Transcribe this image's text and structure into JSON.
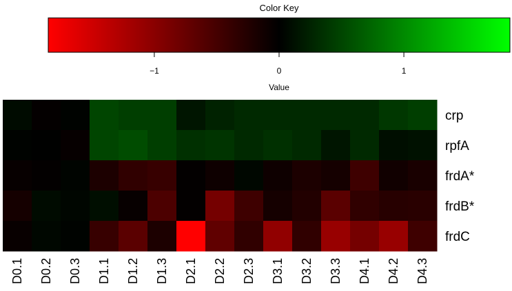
{
  "chart_data": {
    "type": "heatmap",
    "color_key": {
      "title": "Color Key",
      "xlabel": "Value",
      "range": [
        -1.85,
        1.85
      ],
      "ticks": [
        -1,
        0,
        1
      ],
      "tick_labels": [
        "−1",
        "0",
        "1"
      ],
      "low_color": "#ff0000",
      "mid_color": "#000000",
      "high_color": "#00ff00"
    },
    "rows": [
      "crp",
      "rpfA",
      "frdA*",
      "frdB*",
      "frdC"
    ],
    "columns": [
      "D0.1",
      "D0.2",
      "D0.3",
      "D1.1",
      "D1.2",
      "D1.3",
      "D2.1",
      "D2.2",
      "D2.3",
      "D3.1",
      "D3.2",
      "D3.3",
      "D4.1",
      "D4.2",
      "D4.3"
    ],
    "values": [
      [
        0.08,
        -0.03,
        0.02,
        0.5,
        0.45,
        0.45,
        0.15,
        0.25,
        0.3,
        0.3,
        0.3,
        0.3,
        0.3,
        0.4,
        0.45
      ],
      [
        0.02,
        0.01,
        -0.04,
        0.5,
        0.55,
        0.45,
        0.35,
        0.38,
        0.3,
        0.35,
        0.3,
        0.15,
        0.3,
        0.1,
        0.12
      ],
      [
        -0.05,
        -0.02,
        0.03,
        -0.2,
        -0.35,
        -0.4,
        -0.02,
        -0.1,
        0.05,
        -0.1,
        -0.2,
        -0.15,
        -0.45,
        -0.12,
        -0.18
      ],
      [
        -0.15,
        0.08,
        0.04,
        0.1,
        -0.05,
        -0.55,
        -0.02,
        -0.85,
        -0.45,
        -0.15,
        -0.25,
        -0.65,
        -0.35,
        -0.28,
        -0.3
      ],
      [
        -0.06,
        0.05,
        0.02,
        -0.4,
        -0.65,
        -0.2,
        -1.85,
        -0.7,
        -0.35,
        -1.05,
        -0.35,
        -1.1,
        -0.85,
        -1.1,
        -0.45
      ]
    ]
  }
}
